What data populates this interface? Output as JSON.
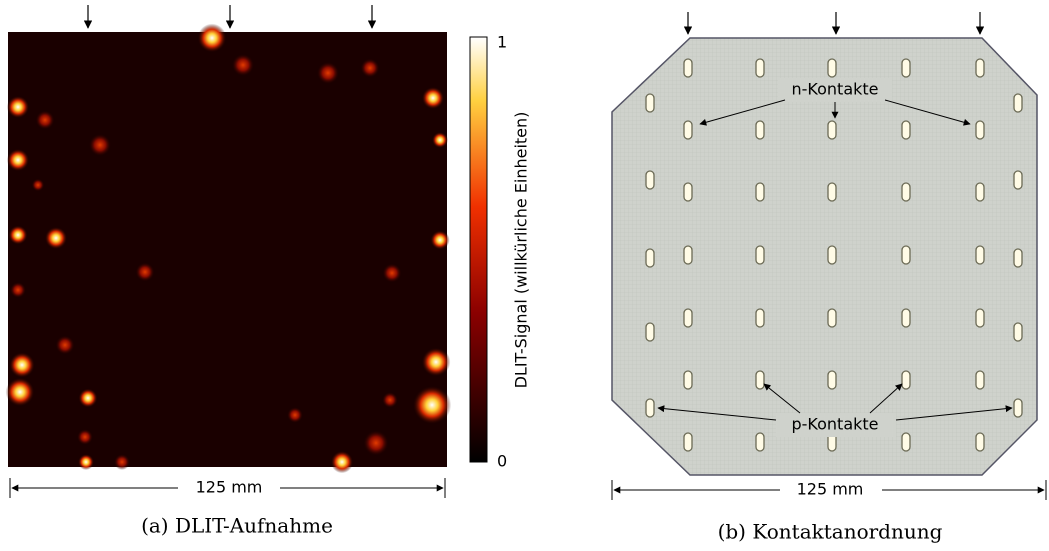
{
  "panel_a": {
    "dimension": "125 mm",
    "caption": "(a) DLIT-Aufnahme",
    "colorbar": {
      "label": "DLIT-Signal (willkürliche Einheiten)",
      "ticks": [
        0,
        1
      ]
    }
  },
  "panel_b": {
    "n_label": "n-Kontakte",
    "p_label": "p-Kontakte",
    "dimension": "125 mm",
    "caption": "(b) Kontaktanordnung"
  }
}
